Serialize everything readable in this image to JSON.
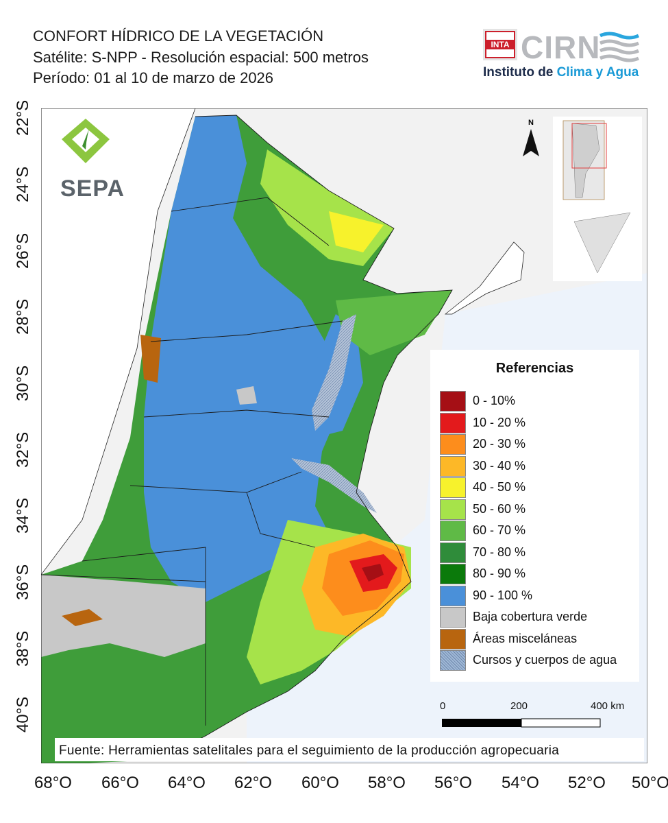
{
  "header": {
    "title": "CONFORT HÍDRICO DE LA VEGETACIÓN",
    "satellite": "Satélite: S-NPP - Resolución espacial: 500 metros",
    "period": "Período: 01 al 10 de marzo de 2026"
  },
  "logos": {
    "inta": "INTA",
    "cirn": "CIRN",
    "institute_prefix": "Instituto de ",
    "institute_highlight": "Clima y Agua",
    "sepa": "SEPA"
  },
  "axes": {
    "latitudes": [
      "22°S",
      "24°S",
      "26°S",
      "28°S",
      "30°S",
      "32°S",
      "34°S",
      "36°S",
      "38°S",
      "40°S"
    ],
    "longitudes": [
      "68°O",
      "66°O",
      "64°O",
      "62°O",
      "60°O",
      "58°O",
      "56°O",
      "54°O",
      "52°O",
      "50°O"
    ]
  },
  "north_arrow": "N",
  "legend": {
    "title": "Referencias",
    "items": [
      {
        "label": "0 - 10%",
        "color": "#a50f15"
      },
      {
        "label": "10 - 20 %",
        "color": "#e31a1c"
      },
      {
        "label": "20 - 30 %",
        "color": "#fd8d1c"
      },
      {
        "label": "30 - 40 %",
        "color": "#fdb827"
      },
      {
        "label": "40 - 50 %",
        "color": "#f7f22c"
      },
      {
        "label": "50 - 60 %",
        "color": "#a6e34a"
      },
      {
        "label": "60 - 70 %",
        "color": "#5fba46"
      },
      {
        "label": "70 - 80 %",
        "color": "#2f8c3a"
      },
      {
        "label": "80 - 90 %",
        "color": "#0b7a0b"
      },
      {
        "label": "90 - 100 %",
        "color": "#4a90d9"
      },
      {
        "label": "Baja cobertura verde",
        "color": "#c8c8c8"
      },
      {
        "label": "Áreas misceláneas",
        "color": "#b8650f"
      },
      {
        "label": "Cursos y cuerpos de agua",
        "color": "#9fb8d6"
      }
    ]
  },
  "scale_bar": {
    "labels": [
      "0",
      "200",
      "400 km"
    ]
  },
  "source": "Fuente: Herramientas satelitales para el seguimiento de la producción agropecuaria"
}
